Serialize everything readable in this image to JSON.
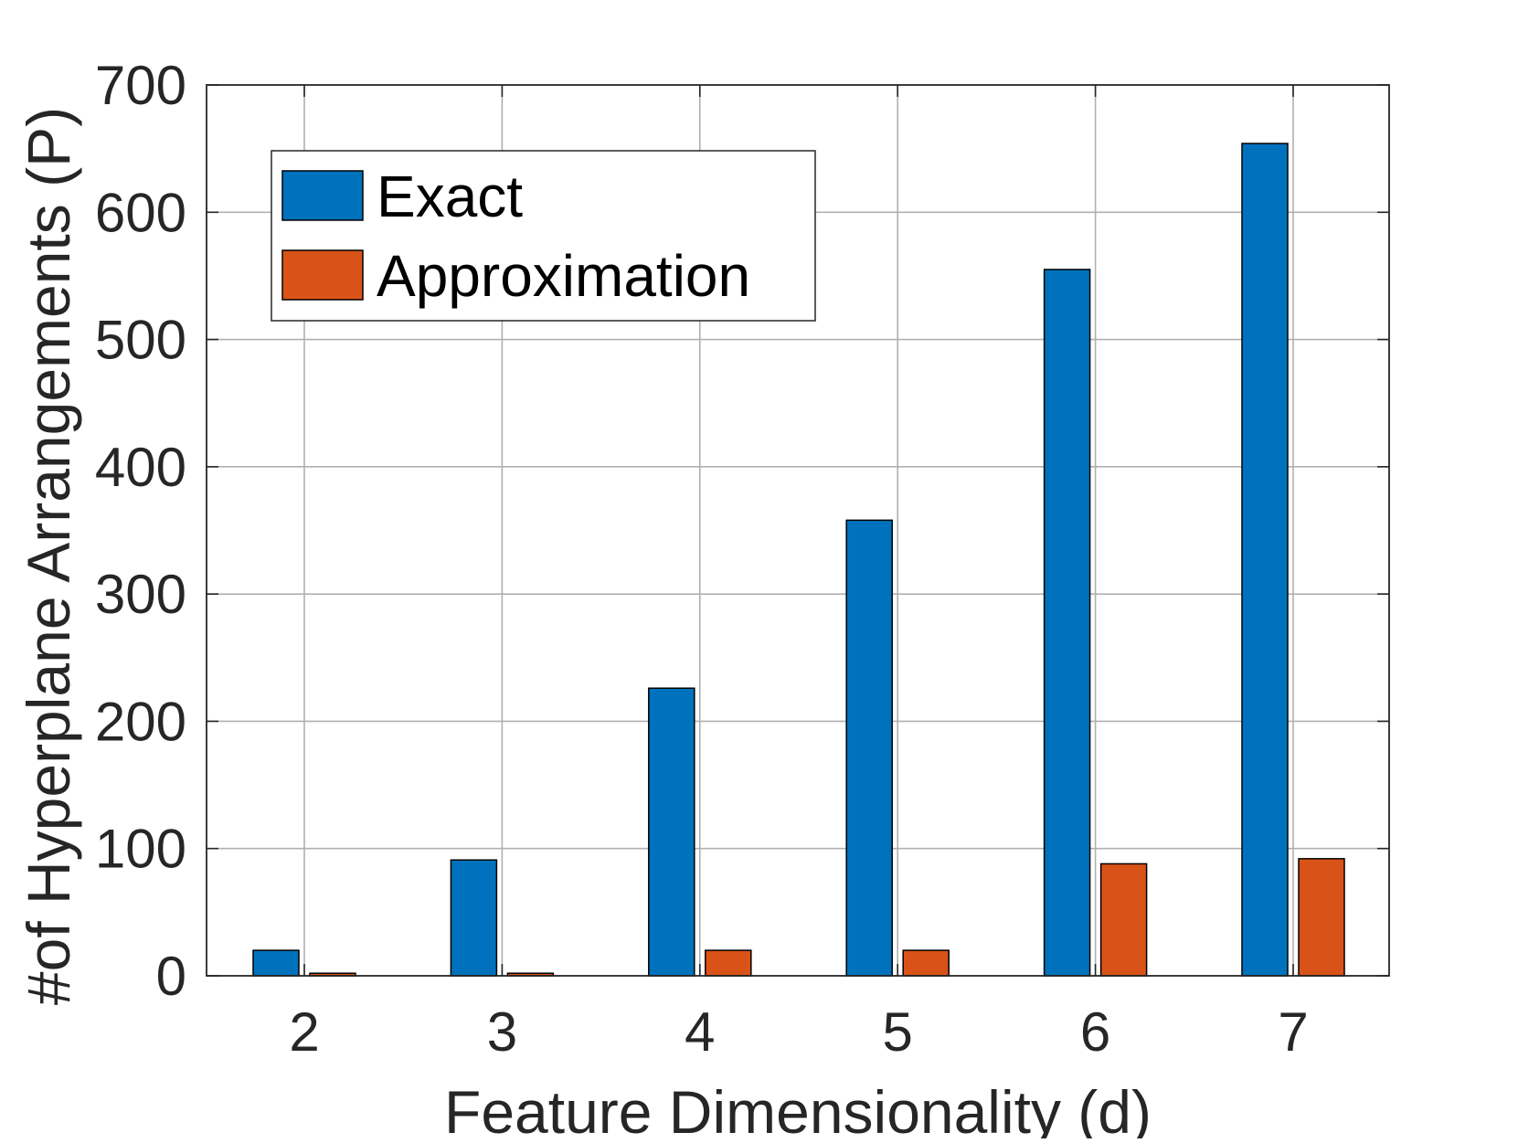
{
  "chart_data": {
    "type": "bar",
    "categories": [
      "2",
      "3",
      "4",
      "5",
      "6",
      "7"
    ],
    "series": [
      {
        "name": "Exact",
        "color": "#0072BD",
        "values": [
          20,
          91,
          226,
          358,
          555,
          654
        ]
      },
      {
        "name": "Approximation",
        "color": "#D95319",
        "values": [
          2,
          2,
          20,
          20,
          88,
          92
        ]
      }
    ],
    "title": "",
    "xlabel": "Feature Dimensionality (d)",
    "ylabel": "#of Hyperplane Arrangements (P)",
    "ylim": [
      0,
      700
    ],
    "yticks": [
      0,
      100,
      200,
      300,
      400,
      500,
      600,
      700
    ],
    "grid": true,
    "legend_position": "top-left"
  }
}
